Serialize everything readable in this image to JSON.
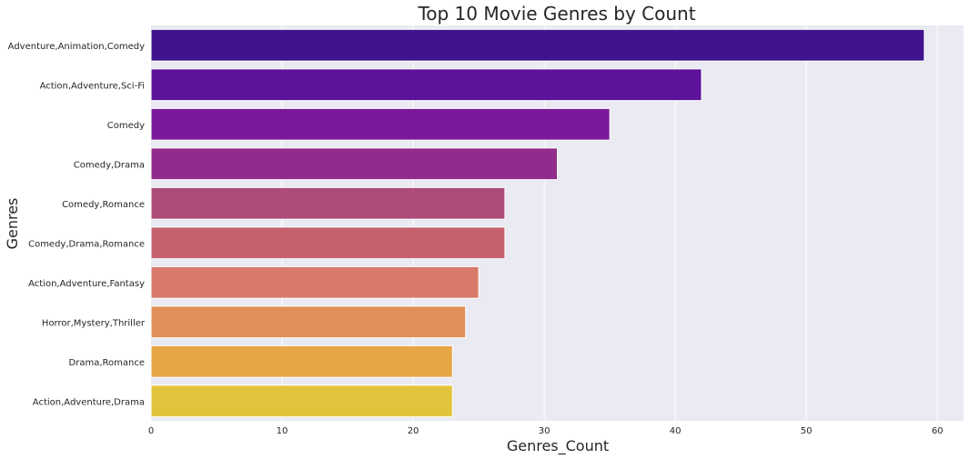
{
  "chart_data": {
    "type": "bar",
    "orientation": "horizontal",
    "title": "Top 10 Movie Genres by Count",
    "xlabel": "Genres_Count",
    "ylabel": "Genres",
    "xlim": [
      0,
      62
    ],
    "xticks": [
      0,
      10,
      20,
      30,
      40,
      50,
      60
    ],
    "grid": true,
    "palette": "plasma",
    "categories": [
      "Adventure,Animation,Comedy",
      "Action,Adventure,Sci-Fi",
      "Comedy",
      "Comedy,Drama",
      "Comedy,Romance",
      "Comedy,Drama,Romance",
      "Action,Adventure,Fantasy",
      "Horror,Mystery,Thriller",
      "Drama,Romance",
      "Action,Adventure,Drama"
    ],
    "values": [
      59,
      42,
      35,
      31,
      27,
      27,
      25,
      24,
      23,
      23
    ],
    "colors": [
      "#3f148c",
      "#5c129a",
      "#7a1999",
      "#912c8c",
      "#ad4b7b",
      "#c4616e",
      "#d77a6a",
      "#e08f58",
      "#e6a646",
      "#e2c43c"
    ]
  }
}
